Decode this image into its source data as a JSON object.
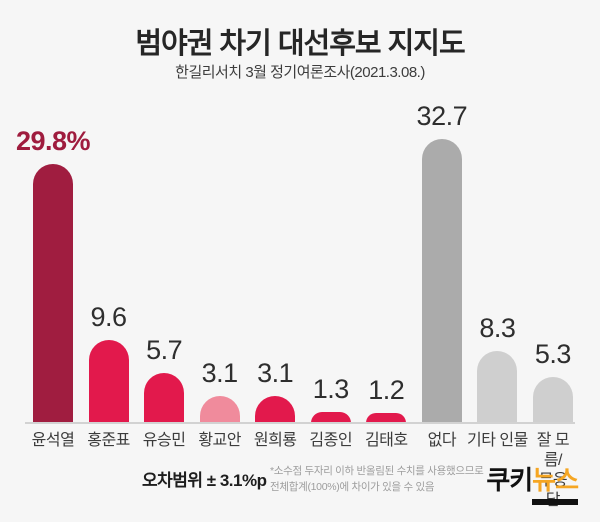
{
  "header": {
    "title": "범야권 차기 대선후보 지지도",
    "subtitle": "한길리서치 3월 정기여론조사(2021.3.08.)"
  },
  "colors": {
    "background": "#f6f6f6",
    "dark_red": "#a01d40",
    "red": "#e2194c",
    "pink": "#f08b9c",
    "gray": "#ababab",
    "light_gray": "#cfcfcf",
    "value_label": "#2e2e2e",
    "value_label_emphasis": "#9f1c3e",
    "baseline": "#d2d2d2"
  },
  "chart_data": {
    "type": "bar",
    "title": "범야권 차기 대선후보 지지도",
    "subtitle": "한길리서치 3월 정기여론조사(2021.3.08.)",
    "categories": [
      "윤석열",
      "홍준표",
      "유승민",
      "황교안",
      "원희룡",
      "김종인",
      "김태호",
      "없다",
      "기타 인물",
      "잘 모름/무응답"
    ],
    "category_label_lines": [
      [
        "윤석열"
      ],
      [
        "홍준표"
      ],
      [
        "유승민"
      ],
      [
        "황교안"
      ],
      [
        "원희룡"
      ],
      [
        "김종인"
      ],
      [
        "김태호"
      ],
      [
        "없다"
      ],
      [
        "기타 인물"
      ],
      [
        "잘 모름/",
        "무응답"
      ]
    ],
    "values": [
      29.8,
      9.6,
      5.7,
      3.1,
      3.1,
      1.3,
      1.2,
      32.7,
      8.3,
      5.3
    ],
    "value_labels": [
      "29.8%",
      "9.6",
      "5.7",
      "3.1",
      "3.1",
      "1.3",
      "1.2",
      "32.7",
      "8.3",
      "5.3"
    ],
    "bar_colors": [
      "dark_red",
      "red",
      "red",
      "pink",
      "red",
      "red",
      "red",
      "gray",
      "light_gray",
      "light_gray"
    ],
    "emphasized_index": 0,
    "unit": "%",
    "ylim": [
      0,
      34
    ],
    "grid": false,
    "legend": false,
    "orientation": "vertical"
  },
  "footer": {
    "margin_of_error": "오차범위 ± 3.1%p",
    "note_lines": [
      "*소수점 두자리 이하 반올림된 수치를 사용했으므로",
      "전체합계(100%)에 차이가 있을 수 있음"
    ],
    "logo": {
      "part_black": "쿠키",
      "part_orange": "뉴스",
      "orange": "#f5a623",
      "black": "#111111"
    }
  }
}
